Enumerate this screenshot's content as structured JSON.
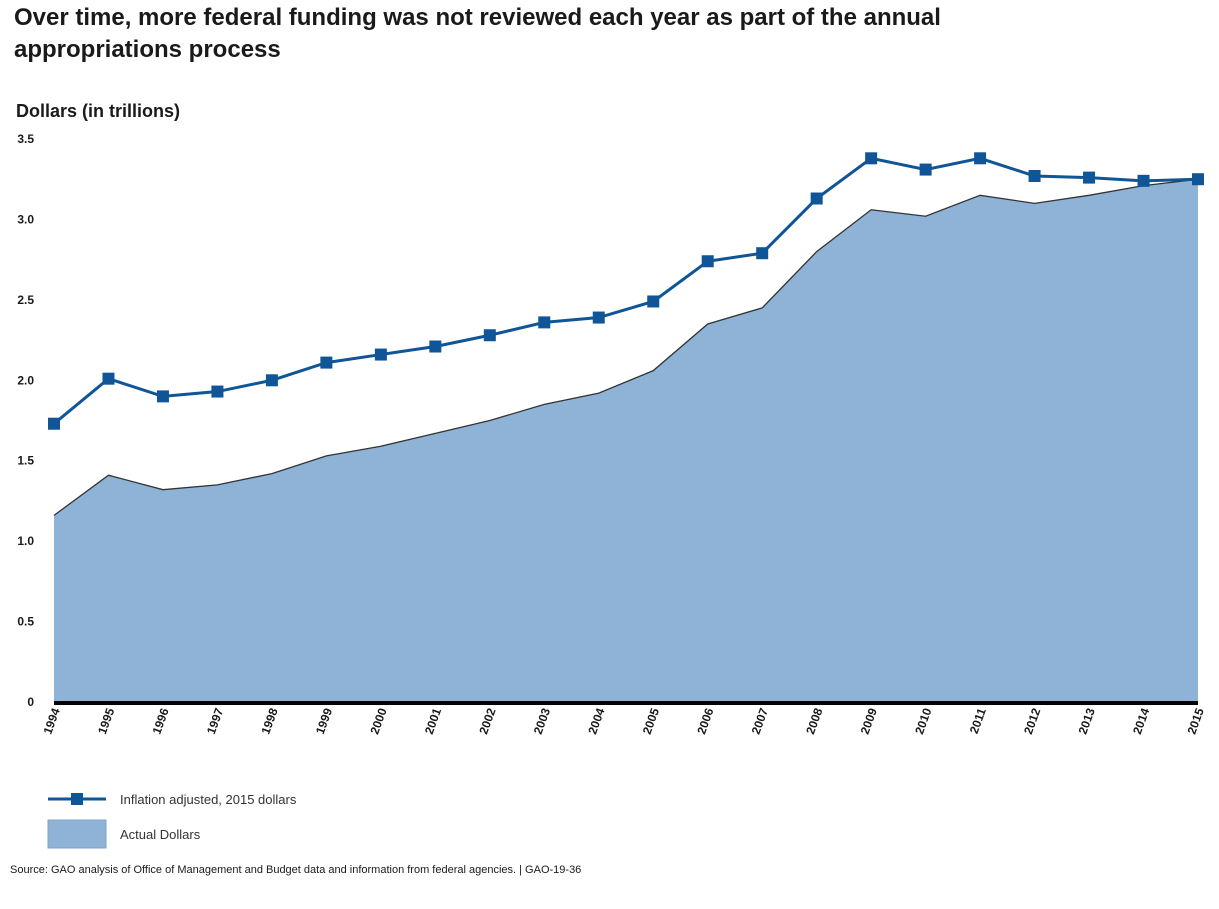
{
  "colors": {
    "area_fill": "#8eb3d6",
    "area_edge": "#333333",
    "line": "#0f5597",
    "baseline": "#000000"
  },
  "chart_data": {
    "type": "area",
    "title": "Over time, more federal funding was not reviewed each year as part of the annual appropriations process",
    "ylabel": "Dollars (in trillions)",
    "xlabel": "",
    "ylim": [
      0,
      3.5
    ],
    "yticks": [
      "0",
      "0.5",
      "1.0",
      "1.5",
      "2.0",
      "2.5",
      "3.0",
      "3.5"
    ],
    "categories": [
      "1994",
      "1995",
      "1996",
      "1997",
      "1998",
      "1999",
      "2000",
      "2001",
      "2002",
      "2003",
      "2004",
      "2005",
      "2006",
      "2007",
      "2008",
      "2009",
      "2010",
      "2011",
      "2012",
      "2013",
      "2014",
      "2015"
    ],
    "series": [
      {
        "name": "Inflation adjusted, 2015 dollars",
        "kind": "line-with-square-markers",
        "values": [
          1.73,
          2.01,
          1.9,
          1.93,
          2.0,
          2.11,
          2.16,
          2.21,
          2.28,
          2.36,
          2.39,
          2.49,
          2.74,
          2.79,
          3.13,
          3.38,
          3.31,
          3.38,
          3.27,
          3.26,
          3.24,
          3.25
        ]
      },
      {
        "name": "Actual Dollars",
        "kind": "area",
        "values": [
          1.16,
          1.41,
          1.32,
          1.35,
          1.42,
          1.53,
          1.59,
          1.67,
          1.75,
          1.85,
          1.92,
          2.06,
          2.35,
          2.45,
          2.8,
          3.06,
          3.02,
          3.15,
          3.1,
          3.15,
          3.21,
          3.25
        ]
      }
    ],
    "legend_position": "bottom-left",
    "grid": false
  },
  "source": "Source: GAO analysis of Office of Management and Budget data and information from federal agencies.  |  GAO-19-36"
}
